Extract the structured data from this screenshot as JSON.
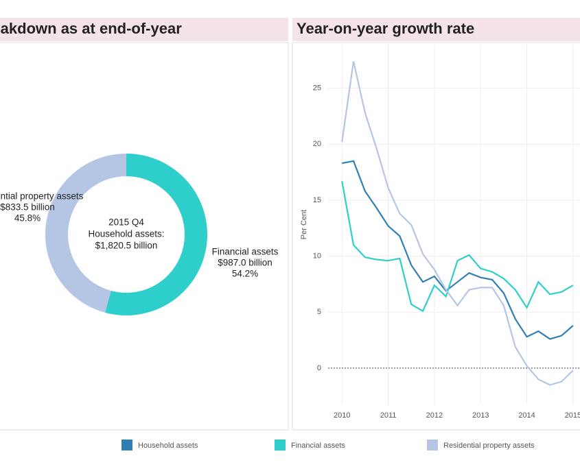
{
  "chart_data": [
    {
      "type": "pie",
      "title": "Breakdown as at end-of-year",
      "center_label": [
        "2015 Q4",
        "Household assets:",
        "$1,820.5 billion"
      ],
      "center_value": 1820.5,
      "categories": [
        "Financial assets",
        "Residential property assets"
      ],
      "values": [
        987.0,
        833.5
      ],
      "value_labels": [
        "$987.0 billion",
        "$833.5 billion"
      ],
      "percentages": [
        54.2,
        45.8
      ],
      "percentage_labels": [
        "54.2%",
        "45.8%"
      ],
      "colors": [
        "#2ecfcb",
        "#b4c6e4"
      ],
      "donut": true
    },
    {
      "type": "line",
      "title": "Year-on-year growth rate",
      "y_label": "Per Cent",
      "x": [
        2010,
        2010.25,
        2010.5,
        2010.75,
        2011,
        2011.25,
        2011.5,
        2011.75,
        2012,
        2012.25,
        2012.5,
        2012.75,
        2013,
        2013.25,
        2013.5,
        2013.75,
        2014,
        2014.25,
        2014.5,
        2014.75,
        2015
      ],
      "xlim": [
        2009.7,
        2015.15
      ],
      "xticks": [
        2010,
        2011,
        2012,
        2013,
        2014,
        2015
      ],
      "ylim": [
        -3.25,
        28.9
      ],
      "yticks": [
        0,
        5,
        10,
        15,
        20,
        25
      ],
      "grid": true,
      "reference_line": 0,
      "legend": "bottom",
      "series": [
        {
          "name": "Household assets",
          "color": "#2f7fb5",
          "values": [
            18.3,
            18.5,
            15.8,
            14.3,
            12.7,
            11.8,
            9.2,
            7.7,
            8.2,
            6.9,
            7.7,
            8.5,
            8.1,
            7.9,
            6.7,
            4.4,
            2.8,
            3.3,
            2.6,
            2.9,
            3.8
          ]
        },
        {
          "name": "Financial assets",
          "color": "#2ecfcb",
          "values": [
            16.7,
            11.0,
            9.9,
            9.7,
            9.6,
            9.8,
            5.7,
            5.1,
            7.4,
            6.4,
            9.6,
            10.1,
            8.9,
            8.6,
            8.0,
            7.0,
            5.4,
            7.7,
            6.6,
            6.8,
            7.4
          ]
        },
        {
          "name": "Residential property assets",
          "color": "#b4c6e4",
          "values": [
            20.2,
            27.4,
            22.8,
            19.6,
            16.1,
            13.8,
            12.8,
            10.2,
            8.8,
            7.0,
            5.6,
            7.0,
            7.2,
            7.2,
            5.6,
            1.9,
            0.2,
            -1.0,
            -1.5,
            -1.2,
            -0.2
          ]
        }
      ]
    }
  ]
}
